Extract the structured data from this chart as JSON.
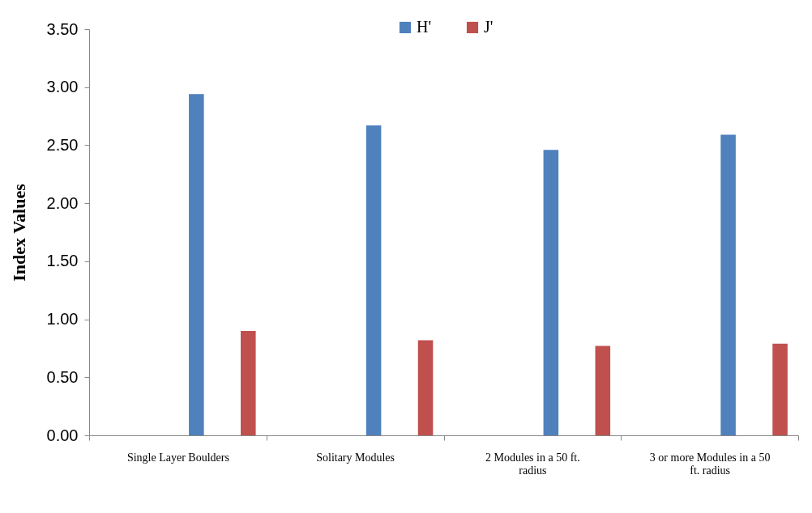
{
  "chart_data": {
    "type": "bar",
    "categories": [
      "Single Layer Boulders",
      "Solitary Modules",
      "2 Modules in a 50 ft. radius",
      "3 or more Modules in a 50 ft. radius"
    ],
    "ylabel": "Index Values",
    "ylim": [
      0,
      3.5
    ],
    "yticks": [
      {
        "value": 0,
        "label": "0.00"
      },
      {
        "value": 0.5,
        "label": "0.50"
      },
      {
        "value": 1,
        "label": "1.00"
      },
      {
        "value": 1.5,
        "label": "1.50"
      },
      {
        "value": 2,
        "label": "2.00"
      },
      {
        "value": 2.5,
        "label": "2.50"
      },
      {
        "value": 3,
        "label": "3.00"
      },
      {
        "value": 3.5,
        "label": "3.50"
      }
    ],
    "series": [
      {
        "name": "H'",
        "color": "#4f81bd",
        "values": [
          2.94,
          2.67,
          2.46,
          2.59
        ]
      },
      {
        "name": "J'",
        "color": "#c0504d",
        "values": [
          0.9,
          0.82,
          0.77,
          0.79
        ]
      }
    ],
    "legend": "top",
    "grid": false
  }
}
